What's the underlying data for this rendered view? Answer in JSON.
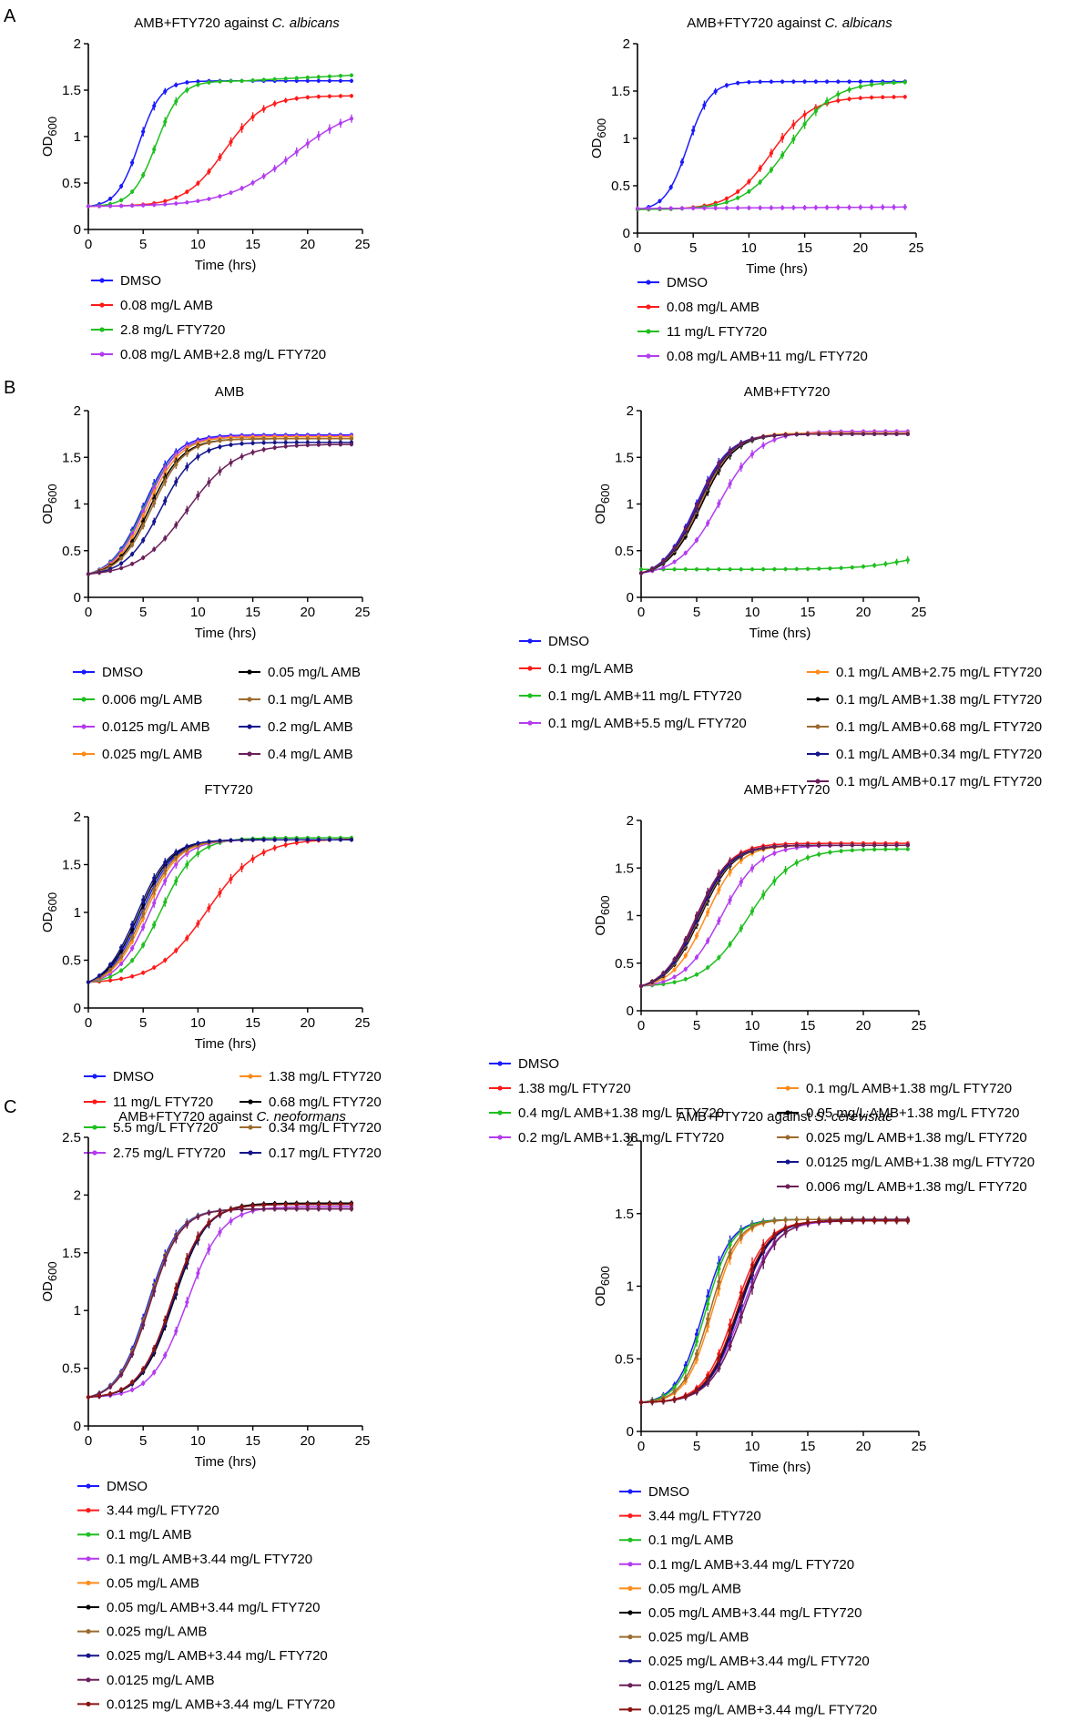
{
  "figure": {
    "panel_labels": [
      "A",
      "B",
      "C"
    ]
  },
  "colors": {
    "blue": "#1a1aff",
    "red": "#ff1a1a",
    "green": "#1fbf1f",
    "violet": "#b43cf0",
    "orange": "#ff8c1a",
    "black": "#000000",
    "brown": "#9c6b2e",
    "navy": "#14148c",
    "plum": "#6b1f5a",
    "darkred": "#8c1414"
  },
  "chart_data": [
    {
      "id": "a1",
      "type": "line",
      "title_prefix": "AMB+FTY720 against ",
      "title_italic": "C. albicans",
      "xlabel": "Time (hrs)",
      "ylabel": "OD600",
      "ylabel_main": "OD",
      "ylabel_sub": "600",
      "xlim": [
        0,
        25
      ],
      "ylim": [
        0,
        2
      ],
      "xticks": [
        "0",
        "5",
        "10",
        "15",
        "20",
        "25"
      ],
      "yticks": [
        "0",
        "0.5",
        "1",
        "1.5",
        "2"
      ],
      "series": [
        {
          "name": "DMSO",
          "color": "#1a1aff",
          "y0": 0.25,
          "K": 1.6,
          "t50": 4.6,
          "w": 1.0
        },
        {
          "name": "0.08 mg/L AMB",
          "color": "#ff1a1a",
          "y0": 0.25,
          "K": 1.44,
          "t50": 12.4,
          "w": 1.8
        },
        {
          "name": "2.8 mg/L FTY720",
          "color": "#1fbf1f",
          "y0": 0.25,
          "K": 1.6,
          "t50": 6.2,
          "w": 1.1,
          "ylast": 1.66
        },
        {
          "name": "0.08 mg/L AMB+2.8 mg/L FTY720",
          "color": "#b43cf0",
          "y0": 0.25,
          "K": 1.35,
          "t50": 18.6,
          "w": 3.0
        }
      ]
    },
    {
      "id": "a2",
      "type": "line",
      "title_prefix": "AMB+FTY720 against ",
      "title_italic": "C. albicans",
      "xlabel": "Time (hrs)",
      "ylabel": "OD600",
      "ylabel_main": "OD",
      "ylabel_sub": "600",
      "xlim": [
        0,
        25
      ],
      "ylim": [
        0,
        2
      ],
      "xticks": [
        "0",
        "5",
        "10",
        "15",
        "20",
        "25"
      ],
      "yticks": [
        "0",
        "0.5",
        "1",
        "1.5",
        "2"
      ],
      "series": [
        {
          "name": "DMSO",
          "color": "#1a1aff",
          "y0": 0.25,
          "K": 1.6,
          "t50": 4.5,
          "w": 1.0
        },
        {
          "name": "0.08 mg/L AMB",
          "color": "#ff1a1a",
          "y0": 0.25,
          "K": 1.44,
          "t50": 12.0,
          "w": 1.8
        },
        {
          "name": "11 mg/L FTY720",
          "color": "#1fbf1f",
          "y0": 0.25,
          "K": 1.6,
          "t50": 13.6,
          "w": 2.0
        },
        {
          "name": "0.08 mg/L AMB+11 mg/L FTY720",
          "color": "#b43cf0",
          "y0": 0.26,
          "K": 0.33,
          "t50": 12,
          "w": 50
        }
      ]
    },
    {
      "id": "b1",
      "type": "line",
      "title_prefix": "AMB",
      "title_italic": "",
      "xlabel": "Time (hrs)",
      "ylabel": "OD600",
      "ylabel_main": "OD",
      "ylabel_sub": "600",
      "xlim": [
        0,
        25
      ],
      "ylim": [
        0,
        2
      ],
      "xticks": [
        "0",
        "5",
        "10",
        "15",
        "20",
        "25"
      ],
      "yticks": [
        "0",
        "0.5",
        "1",
        "1.5",
        "2"
      ],
      "series": [
        {
          "name": "DMSO",
          "color": "#1a1aff",
          "y0": 0.25,
          "K": 1.74,
          "t50": 5.0,
          "w": 1.5
        },
        {
          "name": "0.006 mg/L AMB",
          "color": "#1fbf1f",
          "y0": 0.25,
          "K": 1.72,
          "t50": 5.1,
          "w": 1.5
        },
        {
          "name": "0.0125 mg/L AMB",
          "color": "#b43cf0",
          "y0": 0.25,
          "K": 1.73,
          "t50": 5.2,
          "w": 1.5
        },
        {
          "name": "0.025 mg/L AMB",
          "color": "#ff8c1a",
          "y0": 0.25,
          "K": 1.72,
          "t50": 5.4,
          "w": 1.5
        },
        {
          "name": "0.05 mg/L AMB",
          "color": "#000000",
          "y0": 0.25,
          "K": 1.7,
          "t50": 5.6,
          "w": 1.5
        },
        {
          "name": "0.1 mg/L AMB",
          "color": "#9c6b2e",
          "y0": 0.25,
          "K": 1.7,
          "t50": 5.8,
          "w": 1.5
        },
        {
          "name": "0.2 mg/L AMB",
          "color": "#14148c",
          "y0": 0.25,
          "K": 1.66,
          "t50": 6.6,
          "w": 1.6
        },
        {
          "name": "0.4 mg/L AMB",
          "color": "#6b1f5a",
          "y0": 0.25,
          "K": 1.64,
          "t50": 9.0,
          "w": 2.2
        }
      ]
    },
    {
      "id": "b2",
      "type": "line",
      "title_prefix": "AMB+FTY720",
      "title_italic": "",
      "xlabel": "Time (hrs)",
      "ylabel": "OD600",
      "ylabel_main": "OD",
      "ylabel_sub": "600",
      "xlim": [
        0,
        25
      ],
      "ylim": [
        0,
        2
      ],
      "xticks": [
        "0",
        "5",
        "10",
        "15",
        "20",
        "25"
      ],
      "yticks": [
        "0",
        "0.5",
        "1",
        "1.5",
        "2"
      ],
      "series": [
        {
          "name": "DMSO",
          "color": "#1a1aff",
          "y0": 0.26,
          "K": 1.75,
          "t50": 4.9,
          "w": 1.5
        },
        {
          "name": "0.1 mg/L AMB",
          "color": "#ff1a1a",
          "y0": 0.26,
          "K": 1.75,
          "t50": 5.1,
          "w": 1.5
        },
        {
          "name": "0.1 mg/L AMB+11 mg/L FTY720",
          "color": "#1fbf1f",
          "y0": 0.3,
          "K": 0.55,
          "t50": 25,
          "w": 2.5
        },
        {
          "name": "0.1 mg/L AMB+5.5 mg/L FTY720",
          "color": "#b43cf0",
          "y0": 0.26,
          "K": 1.78,
          "t50": 7.0,
          "w": 1.8
        },
        {
          "name": "0.1 mg/L AMB+2.75 mg/L FTY720",
          "color": "#ff8c1a",
          "y0": 0.26,
          "K": 1.76,
          "t50": 5.3,
          "w": 1.5
        },
        {
          "name": "0.1 mg/L AMB+1.38 mg/L FTY720",
          "color": "#000000",
          "y0": 0.26,
          "K": 1.75,
          "t50": 5.4,
          "w": 1.5
        },
        {
          "name": "0.1 mg/L AMB+0.68 mg/L FTY720",
          "color": "#9c6b2e",
          "y0": 0.26,
          "K": 1.75,
          "t50": 5.2,
          "w": 1.5
        },
        {
          "name": "0.1 mg/L AMB+0.34 mg/L FTY720",
          "color": "#14148c",
          "y0": 0.26,
          "K": 1.75,
          "t50": 5.1,
          "w": 1.5
        },
        {
          "name": "0.1 mg/L AMB+0.17 mg/L FTY720",
          "color": "#6b1f5a",
          "y0": 0.26,
          "K": 1.75,
          "t50": 5.0,
          "w": 1.5
        }
      ]
    },
    {
      "id": "b3",
      "type": "line",
      "title_prefix": "FTY720",
      "title_italic": "",
      "xlabel": "Time (hrs)",
      "ylabel": "OD600",
      "ylabel_main": "OD",
      "ylabel_sub": "600",
      "xlim": [
        0,
        25
      ],
      "ylim": [
        0,
        2
      ],
      "xticks": [
        "0",
        "5",
        "10",
        "15",
        "20",
        "25"
      ],
      "yticks": [
        "0",
        "0.5",
        "1",
        "1.5",
        "2"
      ],
      "series": [
        {
          "name": "DMSO",
          "color": "#1a1aff",
          "y0": 0.27,
          "K": 1.76,
          "t50": 4.8,
          "w": 1.5
        },
        {
          "name": "11 mg/L FTY720",
          "color": "#ff1a1a",
          "y0": 0.27,
          "K": 1.77,
          "t50": 10.8,
          "w": 2.3
        },
        {
          "name": "5.5 mg/L FTY720",
          "color": "#1fbf1f",
          "y0": 0.27,
          "K": 1.78,
          "t50": 6.6,
          "w": 1.6
        },
        {
          "name": "2.75 mg/L FTY720",
          "color": "#b43cf0",
          "y0": 0.27,
          "K": 1.76,
          "t50": 5.6,
          "w": 1.5
        },
        {
          "name": "1.38 mg/L FTY720",
          "color": "#ff8c1a",
          "y0": 0.27,
          "K": 1.76,
          "t50": 5.2,
          "w": 1.5
        },
        {
          "name": "0.68 mg/L FTY720",
          "color": "#000000",
          "y0": 0.27,
          "K": 1.76,
          "t50": 4.6,
          "w": 1.5
        },
        {
          "name": "0.34 mg/L FTY720",
          "color": "#9c6b2e",
          "y0": 0.27,
          "K": 1.76,
          "t50": 5.0,
          "w": 1.5
        },
        {
          "name": "0.17 mg/L FTY720",
          "color": "#14148c",
          "y0": 0.27,
          "K": 1.76,
          "t50": 4.4,
          "w": 1.5
        }
      ]
    },
    {
      "id": "b4",
      "type": "line",
      "title_prefix": "AMB+FTY720",
      "title_italic": "",
      "xlabel": "Time (hrs)",
      "ylabel": "OD600",
      "ylabel_main": "OD",
      "ylabel_sub": "600",
      "xlim": [
        0,
        25
      ],
      "ylim": [
        0,
        2
      ],
      "xticks": [
        "0",
        "5",
        "10",
        "15",
        "20",
        "25"
      ],
      "yticks": [
        "0",
        "0.5",
        "1",
        "1.5",
        "2"
      ],
      "series": [
        {
          "name": "DMSO",
          "color": "#1a1aff",
          "y0": 0.26,
          "K": 1.74,
          "t50": 5.0,
          "w": 1.5
        },
        {
          "name": "1.38 mg/L FTY720",
          "color": "#ff1a1a",
          "y0": 0.26,
          "K": 1.76,
          "t50": 5.0,
          "w": 1.5
        },
        {
          "name": "0.4 mg/L AMB+1.38 mg/L FTY720",
          "color": "#1fbf1f",
          "y0": 0.26,
          "K": 1.7,
          "t50": 9.6,
          "w": 2.0
        },
        {
          "name": "0.2 mg/L AMB+1.38 mg/L FTY720",
          "color": "#b43cf0",
          "y0": 0.26,
          "K": 1.74,
          "t50": 7.2,
          "w": 1.7
        },
        {
          "name": "0.1 mg/L AMB+1.38 mg/L FTY720",
          "color": "#ff8c1a",
          "y0": 0.26,
          "K": 1.74,
          "t50": 5.8,
          "w": 1.5
        },
        {
          "name": "0.05 mg/L AMB+1.38 mg/L FTY720",
          "color": "#000000",
          "y0": 0.26,
          "K": 1.74,
          "t50": 5.3,
          "w": 1.5
        },
        {
          "name": "0.025 mg/L AMB+1.38 mg/L FTY720",
          "color": "#9c6b2e",
          "y0": 0.26,
          "K": 1.74,
          "t50": 5.2,
          "w": 1.5
        },
        {
          "name": "0.0125 mg/L AMB+1.38 mg/L FTY720",
          "color": "#14148c",
          "y0": 0.26,
          "K": 1.74,
          "t50": 5.1,
          "w": 1.5
        },
        {
          "name": "0.006 mg/L AMB+1.38 mg/L FTY720",
          "color": "#6b1f5a",
          "y0": 0.26,
          "K": 1.74,
          "t50": 4.9,
          "w": 1.5
        }
      ]
    },
    {
      "id": "c1",
      "type": "line",
      "title_prefix": "AMB+FTY720 against ",
      "title_italic": "C. neoformans",
      "xlabel": "Time (hrs)",
      "ylabel": "OD600",
      "ylabel_main": "OD",
      "ylabel_sub": "600",
      "xlim": [
        0,
        25
      ],
      "ylim": [
        0,
        2.5
      ],
      "xticks": [
        "0",
        "5",
        "10",
        "15",
        "20",
        "25"
      ],
      "yticks": [
        "0",
        "0.5",
        "1",
        "1.5",
        "2",
        "2.5"
      ],
      "series": [
        {
          "name": "DMSO",
          "color": "#1a1aff",
          "y0": 0.25,
          "K": 1.88,
          "t50": 5.4,
          "w": 1.4
        },
        {
          "name": "3.44 mg/L FTY720",
          "color": "#ff1a1a",
          "y0": 0.25,
          "K": 1.92,
          "t50": 7.6,
          "w": 1.5
        },
        {
          "name": "0.1 mg/L AMB",
          "color": "#1fbf1f",
          "y0": 0.25,
          "K": 1.88,
          "t50": 5.5,
          "w": 1.4
        },
        {
          "name": "0.1 mg/L AMB+3.44 mg/L FTY720",
          "color": "#b43cf0",
          "y0": 0.25,
          "K": 1.9,
          "t50": 9.0,
          "w": 1.6
        },
        {
          "name": "0.05 mg/L AMB",
          "color": "#ff8c1a",
          "y0": 0.25,
          "K": 1.88,
          "t50": 5.6,
          "w": 1.4
        },
        {
          "name": "0.05 mg/L AMB+3.44 mg/L FTY720",
          "color": "#000000",
          "y0": 0.25,
          "K": 1.93,
          "t50": 7.8,
          "w": 1.5
        },
        {
          "name": "0.025 mg/L AMB",
          "color": "#9c6b2e",
          "y0": 0.25,
          "K": 1.88,
          "t50": 5.5,
          "w": 1.4
        },
        {
          "name": "0.025 mg/L AMB+3.44 mg/L FTY720",
          "color": "#14148c",
          "y0": 0.25,
          "K": 1.92,
          "t50": 7.7,
          "w": 1.5
        },
        {
          "name": "0.0125 mg/L AMB",
          "color": "#6b1f5a",
          "y0": 0.25,
          "K": 1.88,
          "t50": 5.6,
          "w": 1.4
        },
        {
          "name": "0.0125 mg/L AMB+3.44 mg/L FTY720",
          "color": "#8c1414",
          "y0": 0.25,
          "K": 1.92,
          "t50": 7.6,
          "w": 1.5
        }
      ]
    },
    {
      "id": "c2",
      "type": "line",
      "title_prefix": "AMB+FTY720 against ",
      "title_italic": "S. cerevisiae",
      "xlabel": "Time (hrs)",
      "ylabel": "OD600",
      "ylabel_main": "OD",
      "ylabel_sub": "600",
      "xlim": [
        0,
        25
      ],
      "ylim": [
        0,
        2
      ],
      "xticks": [
        "0",
        "5",
        "10",
        "15",
        "20",
        "25"
      ],
      "yticks": [
        "0",
        "0.5",
        "1",
        "1.5",
        "2"
      ],
      "series": [
        {
          "name": "DMSO",
          "color": "#1a1aff",
          "y0": 0.2,
          "K": 1.46,
          "t50": 5.6,
          "w": 1.2
        },
        {
          "name": "3.44 mg/L FTY720",
          "color": "#ff1a1a",
          "y0": 0.2,
          "K": 1.45,
          "t50": 8.4,
          "w": 1.4
        },
        {
          "name": "0.1 mg/L AMB",
          "color": "#1fbf1f",
          "y0": 0.2,
          "K": 1.46,
          "t50": 5.8,
          "w": 1.2
        },
        {
          "name": "0.1 mg/L AMB+3.44 mg/L FTY720",
          "color": "#b43cf0",
          "y0": 0.2,
          "K": 1.45,
          "t50": 9.0,
          "w": 1.5
        },
        {
          "name": "0.05 mg/L AMB",
          "color": "#ff8c1a",
          "y0": 0.2,
          "K": 1.46,
          "t50": 6.4,
          "w": 1.2
        },
        {
          "name": "0.05 mg/L AMB+3.44 mg/L FTY720",
          "color": "#000000",
          "y0": 0.2,
          "K": 1.45,
          "t50": 8.7,
          "w": 1.4
        },
        {
          "name": "0.025 mg/L AMB",
          "color": "#9c6b2e",
          "y0": 0.2,
          "K": 1.46,
          "t50": 6.2,
          "w": 1.2
        },
        {
          "name": "0.025 mg/L AMB+3.44 mg/L FTY720",
          "color": "#14148c",
          "y0": 0.2,
          "K": 1.45,
          "t50": 8.8,
          "w": 1.4
        },
        {
          "name": "0.0125 mg/L AMB",
          "color": "#6b1f5a",
          "y0": 0.2,
          "K": 1.46,
          "t50": 9.2,
          "w": 1.5
        },
        {
          "name": "0.0125 mg/L AMB+3.44 mg/L FTY720",
          "color": "#8c1414",
          "y0": 0.2,
          "K": 1.45,
          "t50": 8.6,
          "w": 1.4
        }
      ]
    }
  ]
}
